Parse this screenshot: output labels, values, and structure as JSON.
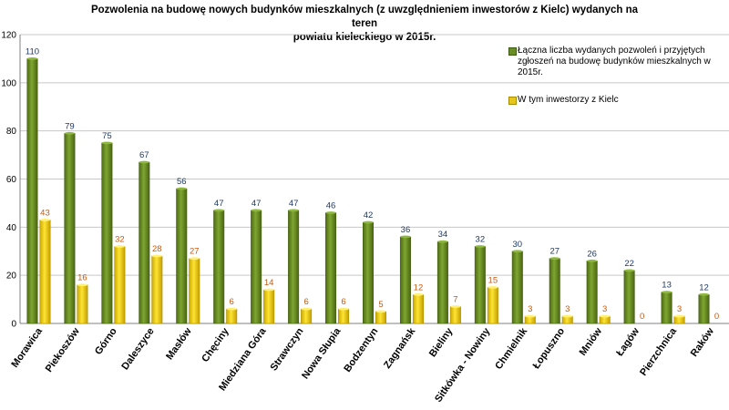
{
  "chart_data": {
    "type": "bar",
    "title_line1": "Pozwolenia na budowę nowych budynków mieszkalnych (z uwzględnieniem inwestorów z Kielc) wydanych na teren",
    "title_line2": "powiatu kieleckiego w 2015r.",
    "categories": [
      "Morawica",
      "Piekoszów",
      "Górno",
      "Daleszyce",
      "Masłów",
      "Chęciny",
      "Miedziana Góra",
      "Strawczyn",
      "Nowa Słupia",
      "Bodzentyn",
      "Zagnańsk",
      "Bieliny",
      "Sitkówka - Nowiny",
      "Chmielnik",
      "Łopuszno",
      "Mniów",
      "Łagów",
      "Pierzchnica",
      "Raków"
    ],
    "series": [
      {
        "name": "Łączna liczba wydanych pozwoleń i przyjętych zgłoszeń na budowę budynków mieszkalnych w 2015r.",
        "values": [
          110,
          79,
          75,
          67,
          56,
          47,
          47,
          47,
          46,
          42,
          36,
          34,
          32,
          30,
          27,
          26,
          22,
          13,
          12
        ],
        "color": "#6b8e23",
        "label_color": "#1f3864"
      },
      {
        "name": "W tym inwestorzy z Kielc",
        "values": [
          43,
          16,
          32,
          28,
          27,
          6,
          14,
          6,
          6,
          5,
          12,
          7,
          15,
          3,
          3,
          3,
          0,
          3,
          0
        ],
        "color": "#e6c619",
        "label_color": "#c55a11"
      }
    ],
    "ylim": [
      0,
      120
    ],
    "yticks": [
      "0",
      "20",
      "40",
      "60",
      "80",
      "100",
      "120"
    ],
    "grid": true,
    "legend_position": "top-right",
    "xlabel": "",
    "ylabel": ""
  }
}
